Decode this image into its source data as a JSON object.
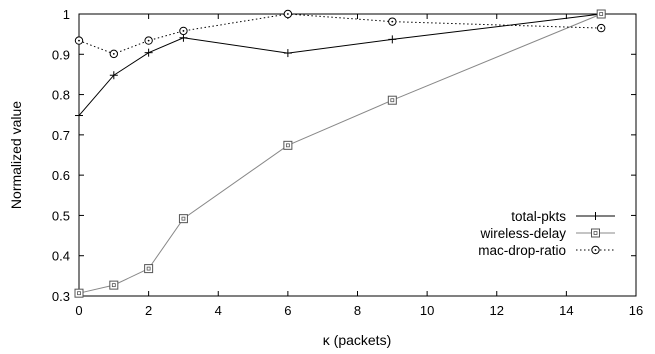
{
  "chart_data": {
    "type": "line",
    "title": "",
    "xlabel": "κ (packets)",
    "ylabel": "Normalized value",
    "xlim": [
      0,
      16
    ],
    "ylim": [
      0.3,
      1.0
    ],
    "xticks": [
      0,
      2,
      4,
      6,
      8,
      10,
      12,
      14,
      16
    ],
    "yticks": [
      0.3,
      0.4,
      0.5,
      0.6,
      0.7,
      0.8,
      0.9,
      1.0
    ],
    "ytick_labels": [
      "0.3",
      "0.4",
      "0.5",
      "0.6",
      "0.7",
      "0.8",
      "0.9",
      "1"
    ],
    "grid": false,
    "legend_position": "lower-right",
    "series": [
      {
        "name": "total-pkts",
        "marker": "plus",
        "line_style": "solid",
        "color": "#000000",
        "x": [
          0,
          1,
          2,
          3,
          6,
          9,
          15
        ],
        "y": [
          0.748,
          0.848,
          0.904,
          0.941,
          0.903,
          0.937,
          1.0
        ]
      },
      {
        "name": "wireless-delay",
        "marker": "square",
        "line_style": "solid",
        "color": "#888888",
        "x": [
          0,
          1,
          2,
          3,
          6,
          9,
          15
        ],
        "y": [
          0.307,
          0.327,
          0.368,
          0.492,
          0.674,
          0.786,
          1.0
        ]
      },
      {
        "name": "mac-drop-ratio",
        "marker": "circle",
        "line_style": "dotted",
        "color": "#000000",
        "x": [
          0,
          1,
          2,
          3,
          6,
          9,
          15
        ],
        "y": [
          0.934,
          0.901,
          0.934,
          0.958,
          1.0,
          0.981,
          0.965
        ]
      }
    ]
  }
}
